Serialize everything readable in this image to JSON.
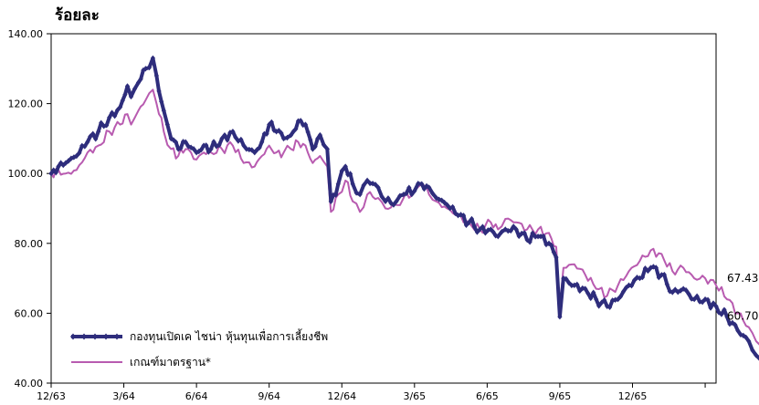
{
  "chart_data": {
    "type": "line",
    "title": "",
    "ylabel": "ร้อยละ",
    "xlabel": "",
    "ylim": [
      40,
      140
    ],
    "y_ticks": [
      "40.00",
      "60.00",
      "80.00",
      "100.00",
      "120.00",
      "140.00"
    ],
    "x_ticks": [
      "12/63",
      "3/64",
      "6/64",
      "9/64",
      "12/64",
      "3/65",
      "6/65",
      "9/65",
      "12/65"
    ],
    "grid": false,
    "legend_position": "bottom-left",
    "colors": {
      "fund": "#2e2d7c",
      "benchmark": "#b85bb0"
    },
    "series": [
      {
        "name": "กองทุนเปิดเค ไชน่า หุ้นทุนเพื่อการเลี้ยงชีพ",
        "end_label": "60.70",
        "points": [
          [
            0.0,
            100
          ],
          [
            0.1,
            102
          ],
          [
            0.2,
            103
          ],
          [
            0.35,
            105
          ],
          [
            0.5,
            109
          ],
          [
            0.65,
            112
          ],
          [
            0.8,
            116
          ],
          [
            0.95,
            119
          ],
          [
            1.05,
            125
          ],
          [
            1.1,
            122
          ],
          [
            1.2,
            126
          ],
          [
            1.3,
            130
          ],
          [
            1.4,
            133
          ],
          [
            1.45,
            128
          ],
          [
            1.55,
            118
          ],
          [
            1.65,
            110
          ],
          [
            1.75,
            107
          ],
          [
            1.85,
            109
          ],
          [
            2.0,
            106
          ],
          [
            2.1,
            108
          ],
          [
            2.2,
            107
          ],
          [
            2.35,
            110
          ],
          [
            2.5,
            112
          ],
          [
            2.65,
            108
          ],
          [
            2.8,
            106
          ],
          [
            2.9,
            109
          ],
          [
            3.0,
            114
          ],
          [
            3.1,
            112
          ],
          [
            3.2,
            110
          ],
          [
            3.3,
            111
          ],
          [
            3.4,
            115
          ],
          [
            3.5,
            114
          ],
          [
            3.6,
            107
          ],
          [
            3.7,
            111
          ],
          [
            3.8,
            107
          ],
          [
            3.85,
            92
          ],
          [
            3.95,
            97
          ],
          [
            4.05,
            102
          ],
          [
            4.15,
            97
          ],
          [
            4.25,
            94
          ],
          [
            4.35,
            98
          ],
          [
            4.5,
            96
          ],
          [
            4.6,
            92
          ],
          [
            4.75,
            92
          ],
          [
            4.85,
            94
          ],
          [
            5.0,
            95
          ],
          [
            5.1,
            97
          ],
          [
            5.2,
            96
          ],
          [
            5.3,
            93
          ],
          [
            5.45,
            91
          ],
          [
            5.6,
            88
          ],
          [
            5.75,
            86
          ],
          [
            5.9,
            84
          ],
          [
            6.05,
            84
          ],
          [
            6.15,
            82
          ],
          [
            6.25,
            84
          ],
          [
            6.4,
            84
          ],
          [
            6.55,
            81
          ],
          [
            6.7,
            82
          ],
          [
            6.85,
            80
          ],
          [
            6.95,
            76
          ],
          [
            7.0,
            59
          ],
          [
            7.05,
            70
          ],
          [
            7.2,
            68
          ],
          [
            7.35,
            67
          ],
          [
            7.5,
            64
          ],
          [
            7.65,
            62
          ],
          [
            7.8,
            64
          ],
          [
            7.95,
            68
          ],
          [
            8.1,
            70
          ],
          [
            8.25,
            73
          ],
          [
            8.4,
            71
          ],
          [
            8.55,
            66
          ],
          [
            8.7,
            67
          ],
          [
            8.85,
            64
          ],
          [
            9.0,
            64
          ],
          [
            9.15,
            62
          ],
          [
            9.3,
            59
          ],
          [
            9.45,
            55
          ],
          [
            9.6,
            52
          ],
          [
            9.7,
            48
          ],
          [
            9.75,
            47
          ],
          [
            9.85,
            53
          ],
          [
            10.0,
            58
          ],
          [
            10.15,
            62
          ],
          [
            10.3,
            61
          ],
          [
            10.45,
            64
          ],
          [
            10.6,
            67
          ],
          [
            10.75,
            68
          ],
          [
            10.9,
            69
          ],
          [
            11.0,
            67
          ],
          [
            11.1,
            65
          ],
          [
            11.25,
            62
          ],
          [
            11.38,
            60.7
          ]
        ]
      },
      {
        "name": "เกณฑ์มาตรฐาน*",
        "end_label": "67.43",
        "points": [
          [
            0.0,
            100
          ],
          [
            0.1,
            101
          ],
          [
            0.2,
            100
          ],
          [
            0.35,
            101
          ],
          [
            0.5,
            106
          ],
          [
            0.65,
            108
          ],
          [
            0.8,
            112
          ],
          [
            0.95,
            114
          ],
          [
            1.05,
            117
          ],
          [
            1.1,
            114
          ],
          [
            1.2,
            118
          ],
          [
            1.3,
            121
          ],
          [
            1.4,
            124
          ],
          [
            1.45,
            120
          ],
          [
            1.55,
            112
          ],
          [
            1.65,
            107
          ],
          [
            1.75,
            105
          ],
          [
            1.85,
            107
          ],
          [
            2.0,
            104
          ],
          [
            2.1,
            106
          ],
          [
            2.2,
            106
          ],
          [
            2.35,
            107
          ],
          [
            2.5,
            108
          ],
          [
            2.65,
            103
          ],
          [
            2.8,
            102
          ],
          [
            2.9,
            105
          ],
          [
            3.0,
            108
          ],
          [
            3.1,
            106
          ],
          [
            3.2,
            106
          ],
          [
            3.3,
            107
          ],
          [
            3.4,
            109
          ],
          [
            3.5,
            108
          ],
          [
            3.6,
            103
          ],
          [
            3.7,
            105
          ],
          [
            3.8,
            102
          ],
          [
            3.85,
            89
          ],
          [
            3.95,
            94
          ],
          [
            4.05,
            98
          ],
          [
            4.15,
            92
          ],
          [
            4.25,
            89
          ],
          [
            4.35,
            94
          ],
          [
            4.5,
            93
          ],
          [
            4.6,
            90
          ],
          [
            4.75,
            91
          ],
          [
            4.85,
            93
          ],
          [
            5.0,
            95
          ],
          [
            5.1,
            97
          ],
          [
            5.2,
            94
          ],
          [
            5.3,
            92
          ],
          [
            5.45,
            90
          ],
          [
            5.6,
            88
          ],
          [
            5.75,
            86
          ],
          [
            5.9,
            84
          ],
          [
            6.05,
            86
          ],
          [
            6.15,
            84
          ],
          [
            6.25,
            87
          ],
          [
            6.4,
            86
          ],
          [
            6.55,
            84
          ],
          [
            6.7,
            84
          ],
          [
            6.85,
            83
          ],
          [
            6.95,
            79
          ],
          [
            7.0,
            62
          ],
          [
            7.05,
            73
          ],
          [
            7.2,
            74
          ],
          [
            7.35,
            71
          ],
          [
            7.5,
            67
          ],
          [
            7.65,
            65
          ],
          [
            7.8,
            68
          ],
          [
            7.95,
            72
          ],
          [
            8.1,
            75
          ],
          [
            8.25,
            78
          ],
          [
            8.4,
            77
          ],
          [
            8.55,
            72
          ],
          [
            8.7,
            73
          ],
          [
            8.85,
            70
          ],
          [
            9.0,
            70
          ],
          [
            9.15,
            68
          ],
          [
            9.3,
            64
          ],
          [
            9.45,
            60
          ],
          [
            9.6,
            56
          ],
          [
            9.7,
            52
          ],
          [
            9.75,
            51
          ],
          [
            9.85,
            57
          ],
          [
            10.0,
            62
          ],
          [
            10.15,
            65
          ],
          [
            10.3,
            65
          ],
          [
            10.45,
            69
          ],
          [
            10.6,
            72
          ],
          [
            10.75,
            74
          ],
          [
            10.9,
            76
          ],
          [
            11.0,
            77
          ],
          [
            11.1,
            74
          ],
          [
            11.25,
            71
          ],
          [
            11.38,
            67.43
          ]
        ]
      }
    ]
  }
}
